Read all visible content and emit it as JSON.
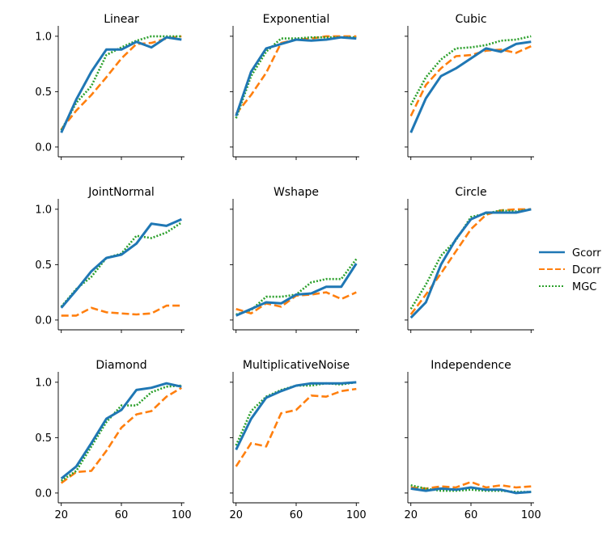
{
  "figure": {
    "colors": {
      "Gcorr": "#1f77b4",
      "Dcorr": "#ff7f0e",
      "MGC": "#2ca02c"
    },
    "legend": {
      "placement": "right",
      "entries": [
        "Gcorr",
        "Dcorr",
        "MGC"
      ]
    }
  },
  "chart_data": [
    {
      "type": "line",
      "title": "Linear",
      "x": [
        20,
        30,
        40,
        50,
        60,
        70,
        80,
        90,
        100
      ],
      "xlim": [
        18,
        102
      ],
      "ylim": [
        -0.03,
        1.05
      ],
      "xticks": [],
      "yticks": [
        0.0,
        0.5,
        1.0
      ],
      "ytick_labels": [
        "0.0",
        "0.5",
        "1.0"
      ],
      "series": [
        {
          "name": "Gcorr",
          "values": [
            0.13,
            0.43,
            0.68,
            0.88,
            0.88,
            0.95,
            0.9,
            0.99,
            0.97
          ]
        },
        {
          "name": "Dcorr",
          "values": [
            0.16,
            0.33,
            0.47,
            0.63,
            0.8,
            0.93,
            0.94,
            0.98,
            1.0
          ]
        },
        {
          "name": "MGC",
          "values": [
            0.15,
            0.4,
            0.55,
            0.83,
            0.9,
            0.96,
            1.0,
            1.0,
            1.0
          ]
        }
      ]
    },
    {
      "type": "line",
      "title": "Exponential",
      "x": [
        20,
        30,
        40,
        50,
        60,
        70,
        80,
        90,
        100
      ],
      "xlim": [
        18,
        102
      ],
      "ylim": [
        -0.03,
        1.05
      ],
      "xticks": [],
      "yticks": [
        0.0,
        0.5,
        1.0
      ],
      "ytick_labels": [
        "",
        "",
        ""
      ],
      "series": [
        {
          "name": "Gcorr",
          "values": [
            0.28,
            0.68,
            0.89,
            0.93,
            0.97,
            0.96,
            0.97,
            0.99,
            0.98
          ]
        },
        {
          "name": "Dcorr",
          "values": [
            0.3,
            0.47,
            0.67,
            0.94,
            0.97,
            0.98,
            1.0,
            1.0,
            1.0
          ]
        },
        {
          "name": "MGC",
          "values": [
            0.26,
            0.64,
            0.86,
            0.98,
            0.98,
            0.99,
            0.99,
            0.99,
            0.99
          ]
        }
      ]
    },
    {
      "type": "line",
      "title": "Cubic",
      "x": [
        20,
        30,
        40,
        50,
        60,
        70,
        80,
        90,
        100
      ],
      "xlim": [
        18,
        102
      ],
      "ylim": [
        -0.03,
        1.05
      ],
      "xticks": [],
      "yticks": [
        0.0,
        0.5,
        1.0
      ],
      "ytick_labels": [
        "",
        "",
        ""
      ],
      "series": [
        {
          "name": "Gcorr",
          "values": [
            0.13,
            0.44,
            0.64,
            0.71,
            0.8,
            0.89,
            0.86,
            0.93,
            0.95
          ]
        },
        {
          "name": "Dcorr",
          "values": [
            0.28,
            0.56,
            0.71,
            0.82,
            0.83,
            0.87,
            0.88,
            0.85,
            0.91
          ]
        },
        {
          "name": "MGC",
          "values": [
            0.38,
            0.63,
            0.79,
            0.89,
            0.9,
            0.92,
            0.96,
            0.97,
            1.0
          ]
        }
      ]
    },
    {
      "type": "line",
      "title": "JointNormal",
      "x": [
        20,
        30,
        40,
        50,
        60,
        70,
        80,
        90,
        100
      ],
      "xlim": [
        18,
        102
      ],
      "ylim": [
        -0.03,
        1.05
      ],
      "xticks": [],
      "yticks": [
        0.0,
        0.5,
        1.0
      ],
      "ytick_labels": [
        "0.0",
        "0.5",
        "1.0"
      ],
      "series": [
        {
          "name": "Gcorr",
          "values": [
            0.11,
            0.27,
            0.44,
            0.56,
            0.59,
            0.69,
            0.87,
            0.85,
            0.91
          ]
        },
        {
          "name": "Dcorr",
          "values": [
            0.04,
            0.04,
            0.11,
            0.07,
            0.06,
            0.05,
            0.06,
            0.13,
            0.13
          ]
        },
        {
          "name": "MGC",
          "values": [
            0.12,
            0.28,
            0.39,
            0.56,
            0.6,
            0.76,
            0.74,
            0.79,
            0.88
          ]
        }
      ]
    },
    {
      "type": "line",
      "title": "Wshape",
      "x": [
        20,
        30,
        40,
        50,
        60,
        70,
        80,
        90,
        100
      ],
      "xlim": [
        18,
        102
      ],
      "ylim": [
        -0.03,
        1.05
      ],
      "xticks": [],
      "yticks": [
        0.0,
        0.5,
        1.0
      ],
      "ytick_labels": [
        "",
        "",
        ""
      ],
      "series": [
        {
          "name": "Gcorr",
          "values": [
            0.04,
            0.1,
            0.16,
            0.15,
            0.23,
            0.24,
            0.3,
            0.3,
            0.51
          ]
        },
        {
          "name": "Dcorr",
          "values": [
            0.1,
            0.06,
            0.15,
            0.12,
            0.22,
            0.23,
            0.25,
            0.19,
            0.25
          ]
        },
        {
          "name": "MGC",
          "values": [
            0.05,
            0.09,
            0.21,
            0.21,
            0.23,
            0.34,
            0.37,
            0.37,
            0.55
          ]
        }
      ]
    },
    {
      "type": "line",
      "title": "Circle",
      "x": [
        20,
        30,
        40,
        50,
        60,
        70,
        80,
        90,
        100
      ],
      "xlim": [
        18,
        102
      ],
      "ylim": [
        -0.03,
        1.05
      ],
      "xticks": [],
      "yticks": [
        0.0,
        0.5,
        1.0
      ],
      "ytick_labels": [
        "",
        "",
        ""
      ],
      "series": [
        {
          "name": "Gcorr",
          "values": [
            0.02,
            0.16,
            0.5,
            0.73,
            0.91,
            0.97,
            0.97,
            0.97,
            1.0
          ]
        },
        {
          "name": "Dcorr",
          "values": [
            0.05,
            0.23,
            0.42,
            0.62,
            0.82,
            0.95,
            0.99,
            1.0,
            1.0
          ]
        },
        {
          "name": "MGC",
          "values": [
            0.1,
            0.32,
            0.58,
            0.72,
            0.93,
            0.96,
            0.99,
            0.98,
            1.0
          ]
        }
      ]
    },
    {
      "type": "line",
      "title": "Diamond",
      "x": [
        20,
        30,
        40,
        50,
        60,
        70,
        80,
        90,
        100
      ],
      "xlim": [
        18,
        102
      ],
      "ylim": [
        -0.03,
        1.05
      ],
      "xticks": [
        20,
        60,
        100
      ],
      "xtick_labels": [
        "20",
        "60",
        "100"
      ],
      "yticks": [
        0.0,
        0.5,
        1.0
      ],
      "ytick_labels": [
        "0.0",
        "0.5",
        "1.0"
      ],
      "series": [
        {
          "name": "Gcorr",
          "values": [
            0.13,
            0.24,
            0.45,
            0.67,
            0.75,
            0.93,
            0.95,
            0.99,
            0.96
          ]
        },
        {
          "name": "Dcorr",
          "values": [
            0.09,
            0.19,
            0.2,
            0.38,
            0.59,
            0.71,
            0.74,
            0.87,
            0.95
          ]
        },
        {
          "name": "MGC",
          "values": [
            0.11,
            0.2,
            0.42,
            0.64,
            0.79,
            0.79,
            0.91,
            0.96,
            0.97
          ]
        }
      ]
    },
    {
      "type": "line",
      "title": "MultiplicativeNoise",
      "x": [
        20,
        30,
        40,
        50,
        60,
        70,
        80,
        90,
        100
      ],
      "xlim": [
        18,
        102
      ],
      "ylim": [
        -0.03,
        1.05
      ],
      "xticks": [
        20,
        60,
        100
      ],
      "xtick_labels": [
        "20",
        "60",
        "100"
      ],
      "yticks": [
        0.0,
        0.5,
        1.0
      ],
      "ytick_labels": [
        "",
        "",
        ""
      ],
      "series": [
        {
          "name": "Gcorr",
          "values": [
            0.39,
            0.67,
            0.86,
            0.92,
            0.97,
            0.99,
            0.99,
            0.99,
            1.0
          ]
        },
        {
          "name": "Dcorr",
          "values": [
            0.24,
            0.45,
            0.42,
            0.72,
            0.75,
            0.88,
            0.87,
            0.92,
            0.94
          ]
        },
        {
          "name": "MGC",
          "values": [
            0.43,
            0.74,
            0.87,
            0.93,
            0.97,
            0.97,
            0.99,
            0.98,
            1.0
          ]
        }
      ]
    },
    {
      "type": "line",
      "title": "Independence",
      "x": [
        20,
        30,
        40,
        50,
        60,
        70,
        80,
        90,
        100
      ],
      "xlim": [
        18,
        102
      ],
      "ylim": [
        -0.03,
        1.05
      ],
      "xticks": [
        20,
        60,
        100
      ],
      "xtick_labels": [
        "20",
        "60",
        "100"
      ],
      "yticks": [
        0.0,
        0.5,
        1.0
      ],
      "ytick_labels": [
        "",
        "",
        ""
      ],
      "series": [
        {
          "name": "Gcorr",
          "values": [
            0.04,
            0.02,
            0.04,
            0.03,
            0.05,
            0.03,
            0.03,
            0.0,
            0.01
          ]
        },
        {
          "name": "Dcorr",
          "values": [
            0.05,
            0.04,
            0.06,
            0.05,
            0.1,
            0.05,
            0.07,
            0.05,
            0.06
          ]
        },
        {
          "name": "MGC",
          "values": [
            0.07,
            0.04,
            0.02,
            0.02,
            0.03,
            0.02,
            0.02,
            0.01,
            0.01
          ]
        }
      ]
    }
  ]
}
